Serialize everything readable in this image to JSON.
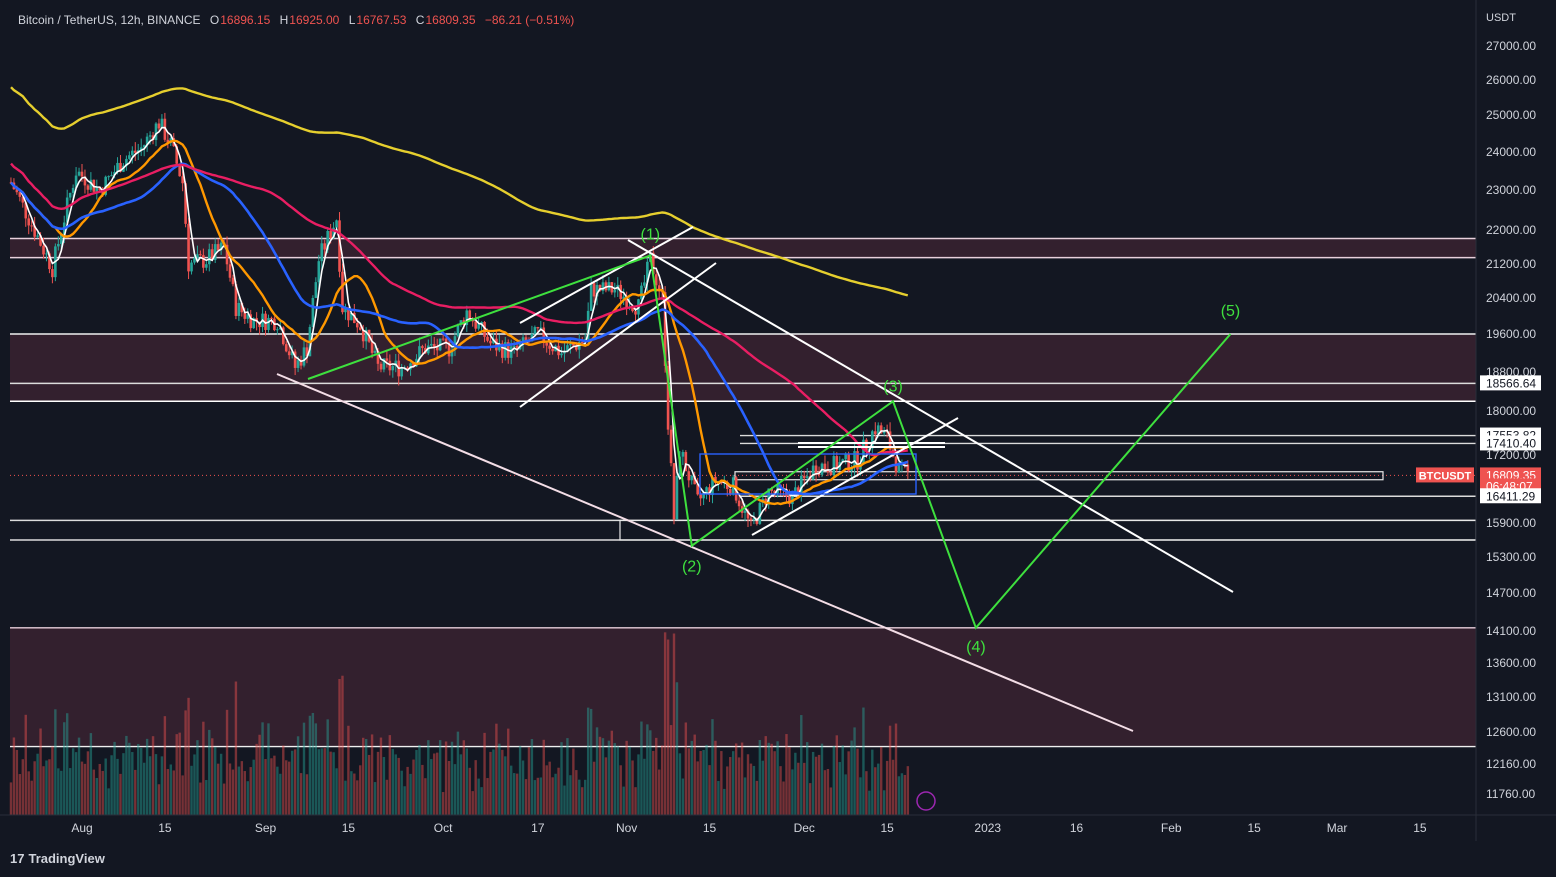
{
  "header": {
    "symbol": "Bitcoin / TetherUS, 12h, BINANCE",
    "open_label": "O",
    "open": "16896.15",
    "high_label": "H",
    "high": "16925.00",
    "low_label": "L",
    "low": "16767.53",
    "close_label": "C",
    "close": "16809.35",
    "change": "−86.21 (−0.51%)"
  },
  "axis": {
    "currency": "USDT",
    "price_ticks": [
      "27000.00",
      "26000.00",
      "25000.00",
      "24000.00",
      "23000.00",
      "22000.00",
      "21200.00",
      "20400.00",
      "19600.00",
      "18800.00",
      "18000.00",
      "17200.00",
      "15900.00",
      "15300.00",
      "14700.00",
      "14100.00",
      "13600.00",
      "13100.00",
      "12600.00",
      "12160.00",
      "11760.00"
    ],
    "date_ticks": [
      "Aug",
      "15",
      "Sep",
      "15",
      "Oct",
      "17",
      "Nov",
      "15",
      "Dec",
      "15",
      "2023",
      "16",
      "Feb",
      "15",
      "Mar",
      "15"
    ]
  },
  "price_labels": [
    {
      "text": "18566.64",
      "kind": "level"
    },
    {
      "text": "17553.82",
      "kind": "level"
    },
    {
      "text": "17410.40",
      "kind": "level"
    },
    {
      "text": "16809.35",
      "kind": "current"
    },
    {
      "text": "06:48:07",
      "kind": "countdown"
    },
    {
      "text": "16411.29",
      "kind": "level"
    }
  ],
  "ticker_tag": "BTCUSDT",
  "wave_labels": [
    "(1)",
    "(2)",
    "(3)",
    "(4)",
    "(5)"
  ],
  "branding": {
    "logo_text": "TradingView",
    "logo_mark": "17"
  },
  "colors": {
    "background": "#131722",
    "up": "#26a69a",
    "down": "#ef5350",
    "wave": "#3ee03e",
    "ma_yellow": "#e6cf2e",
    "ma_pink": "#e91e63",
    "ma_orange": "#ff9800",
    "ma_blue": "#2962ff",
    "zone_fill": "#3a2230"
  },
  "chart_data": {
    "type": "candlestick",
    "symbol": "BTCUSDT",
    "interval": "12h",
    "exchange": "BINANCE",
    "y_unit": "USDT",
    "ylim": [
      11500,
      27700
    ],
    "current_price": 16809.35,
    "ohlc_last": {
      "open": 16896.15,
      "high": 16925.0,
      "low": 16767.53,
      "close": 16809.35,
      "change": -86.21,
      "change_pct": -0.51
    },
    "horizontal_levels": [
      21800,
      21350,
      19600,
      18566.64,
      18200,
      17553.82,
      17410.4,
      16809.35,
      16411.29,
      15950,
      15600,
      14150,
      12400
    ],
    "zones": [
      [
        21350,
        21800
      ],
      [
        18200,
        19600
      ],
      [
        12400,
        14150
      ]
    ],
    "close_path": [
      {
        "x": "2022-07-20",
        "y": 23200
      },
      {
        "x": "2022-07-24",
        "y": 22000
      },
      {
        "x": "2022-07-27",
        "y": 21100
      },
      {
        "x": "2022-07-31",
        "y": 23500
      },
      {
        "x": "2022-08-04",
        "y": 23000
      },
      {
        "x": "2022-08-08",
        "y": 23800
      },
      {
        "x": "2022-08-11",
        "y": 24100
      },
      {
        "x": "2022-08-14",
        "y": 24800
      },
      {
        "x": "2022-08-16",
        "y": 24200
      },
      {
        "x": "2022-08-18",
        "y": 23200
      },
      {
        "x": "2022-08-19",
        "y": 21200
      },
      {
        "x": "2022-08-22",
        "y": 21300
      },
      {
        "x": "2022-08-25",
        "y": 21600
      },
      {
        "x": "2022-08-27",
        "y": 20200
      },
      {
        "x": "2022-08-30",
        "y": 19900
      },
      {
        "x": "2022-09-03",
        "y": 19900
      },
      {
        "x": "2022-09-06",
        "y": 18900
      },
      {
        "x": "2022-09-08",
        "y": 19300
      },
      {
        "x": "2022-09-10",
        "y": 21300
      },
      {
        "x": "2022-09-13",
        "y": 22300
      },
      {
        "x": "2022-09-14",
        "y": 20200
      },
      {
        "x": "2022-09-17",
        "y": 19800
      },
      {
        "x": "2022-09-20",
        "y": 18900
      },
      {
        "x": "2022-09-24",
        "y": 18900
      },
      {
        "x": "2022-09-28",
        "y": 19300
      },
      {
        "x": "2022-10-02",
        "y": 19300
      },
      {
        "x": "2022-10-05",
        "y": 20100
      },
      {
        "x": "2022-10-09",
        "y": 19400
      },
      {
        "x": "2022-10-13",
        "y": 19200
      },
      {
        "x": "2022-10-17",
        "y": 19600
      },
      {
        "x": "2022-10-21",
        "y": 19200
      },
      {
        "x": "2022-10-25",
        "y": 19500
      },
      {
        "x": "2022-10-26",
        "y": 20600
      },
      {
        "x": "2022-10-30",
        "y": 20600
      },
      {
        "x": "2022-11-03",
        "y": 20200
      },
      {
        "x": "2022-11-05",
        "y": 21300
      },
      {
        "x": "2022-11-07",
        "y": 20400
      },
      {
        "x": "2022-11-08",
        "y": 17800
      },
      {
        "x": "2022-11-09",
        "y": 16000
      },
      {
        "x": "2022-11-10",
        "y": 17300
      },
      {
        "x": "2022-11-13",
        "y": 16300
      },
      {
        "x": "2022-11-16",
        "y": 16700
      },
      {
        "x": "2022-11-19",
        "y": 16600
      },
      {
        "x": "2022-11-22",
        "y": 15800
      },
      {
        "x": "2022-11-25",
        "y": 16500
      },
      {
        "x": "2022-11-29",
        "y": 16400
      },
      {
        "x": "2022-12-03",
        "y": 17000
      },
      {
        "x": "2022-12-06",
        "y": 17000
      },
      {
        "x": "2022-12-10",
        "y": 17100
      },
      {
        "x": "2022-12-13",
        "y": 17700
      },
      {
        "x": "2022-12-15",
        "y": 17500
      },
      {
        "x": "2022-12-17",
        "y": 16900
      },
      {
        "x": "2022-12-19",
        "y": 16809.35
      }
    ],
    "elliott_wave_projection": [
      {
        "label": "(1)",
        "x": "2022-11-05",
        "y": 21400
      },
      {
        "label": "(2)",
        "x": "2022-11-12",
        "y": 15500
      },
      {
        "label": "(3)",
        "x": "2022-12-16",
        "y": 18200
      },
      {
        "label": "(4)",
        "x": "2022-12-30",
        "y": 14150
      },
      {
        "label": "(5)",
        "x": "2023-02-11",
        "y": 19600
      }
    ]
  }
}
